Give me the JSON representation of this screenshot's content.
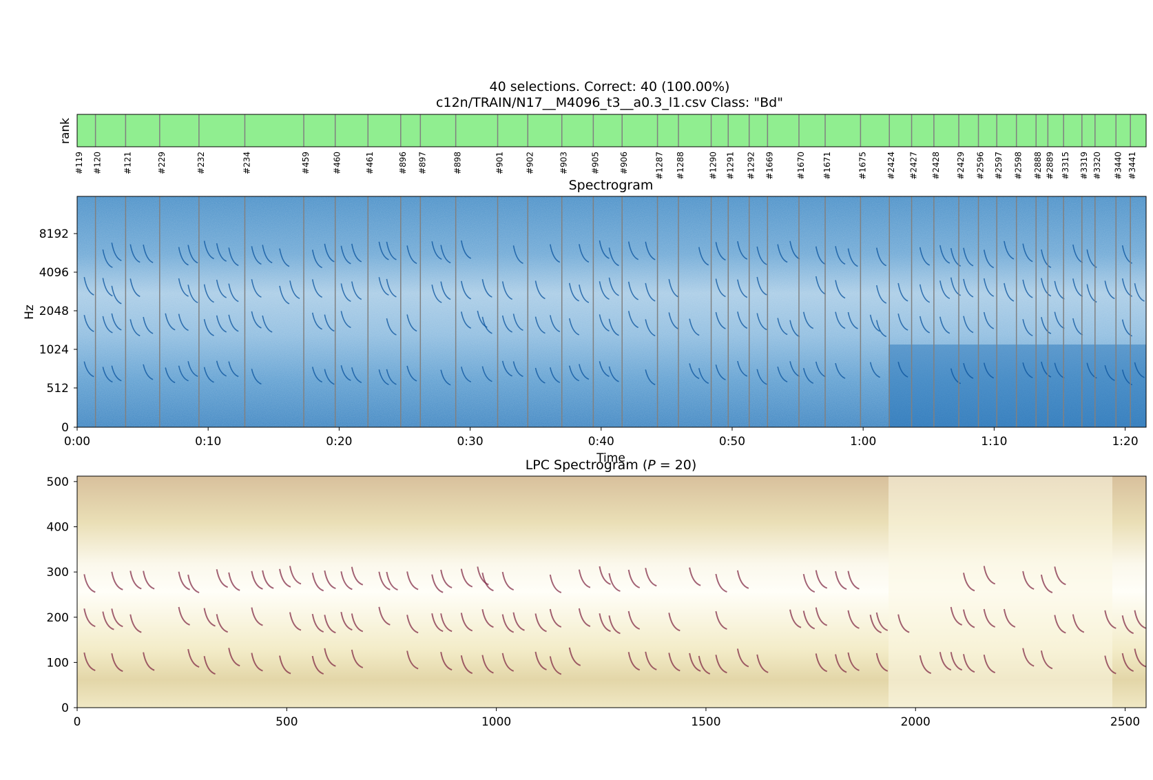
{
  "title_line1": "40 selections.  Correct: 40 (100.00%)",
  "title_line2": "c12n/TRAIN/N17__M4096_t3__a0.3_l1.csv  Class: \"Bd\"",
  "rank_label": "rank",
  "spectrogram_title": "Spectrogram",
  "lpc_title_prefix": "LPC Spectrogram (",
  "lpc_title_var": "P",
  "lpc_title_suffix": " = 20)",
  "colors": {
    "correct_fill": "#90ee90",
    "boundary_line": "#808080",
    "spec_base": "#6baed6",
    "spec_dark": "#08519c",
    "spec_light": "#deebf7",
    "lpc_base": "#f7f3d6",
    "lpc_dark": "#7a1f3d",
    "lpc_tan": "#d8c59a"
  },
  "chart_data": [
    {
      "type": "heatmap",
      "name": "rank-strip",
      "ylabel": "rank",
      "selections": [
        {
          "label": "#119",
          "start": 0.0
        },
        {
          "label": "#120",
          "start": 1.4
        },
        {
          "label": "#121",
          "start": 3.7
        },
        {
          "label": "#229",
          "start": 6.3
        },
        {
          "label": "#232",
          "start": 9.3
        },
        {
          "label": "#234",
          "start": 12.8
        },
        {
          "label": "#459",
          "start": 17.3
        },
        {
          "label": "#460",
          "start": 19.7
        },
        {
          "label": "#461",
          "start": 22.2
        },
        {
          "label": "#896",
          "start": 24.7
        },
        {
          "label": "#897",
          "start": 26.2
        },
        {
          "label": "#898",
          "start": 28.9
        },
        {
          "label": "#901",
          "start": 32.1
        },
        {
          "label": "#902",
          "start": 34.4
        },
        {
          "label": "#903",
          "start": 37.0
        },
        {
          "label": "#905",
          "start": 39.4
        },
        {
          "label": "#906",
          "start": 41.6
        },
        {
          "label": "#1287",
          "start": 44.3
        },
        {
          "label": "#1288",
          "start": 45.9
        },
        {
          "label": "#1290",
          "start": 48.4
        },
        {
          "label": "#1291",
          "start": 49.7
        },
        {
          "label": "#1292",
          "start": 51.3
        },
        {
          "label": "#1669",
          "start": 52.7
        },
        {
          "label": "#1670",
          "start": 55.1
        },
        {
          "label": "#1671",
          "start": 57.1
        },
        {
          "label": "#1675",
          "start": 59.8
        },
        {
          "label": "#2424",
          "start": 62.0
        },
        {
          "label": "#2427",
          "start": 63.7
        },
        {
          "label": "#2428",
          "start": 65.4
        },
        {
          "label": "#2429",
          "start": 67.3
        },
        {
          "label": "#2596",
          "start": 68.8
        },
        {
          "label": "#2597",
          "start": 70.2
        },
        {
          "label": "#2598",
          "start": 71.7
        },
        {
          "label": "#2888",
          "start": 73.2
        },
        {
          "label": "#2889",
          "start": 74.1
        },
        {
          "label": "#3315",
          "start": 75.3
        },
        {
          "label": "#3319",
          "start": 76.7
        },
        {
          "label": "#3320",
          "start": 77.7
        },
        {
          "label": "#3440",
          "start": 79.3
        },
        {
          "label": "#3441",
          "start": 80.4
        }
      ],
      "xlim": [
        0,
        81.6
      ],
      "all_correct": true
    },
    {
      "type": "heatmap",
      "name": "spectrogram",
      "title": "Spectrogram",
      "xlabel": "Time",
      "ylabel": "Hz",
      "x_ticks": [
        "0:00",
        "0:10",
        "0:20",
        "0:30",
        "0:40",
        "0:50",
        "1:00",
        "1:10",
        "1:20"
      ],
      "x_tick_values": [
        0,
        10,
        20,
        30,
        40,
        50,
        60,
        70,
        80
      ],
      "xlim": [
        0,
        81.6
      ],
      "y_ticks": [
        "0",
        "512",
        "1024",
        "2048",
        "4096",
        "8192"
      ],
      "y_scale": "log2-like"
    },
    {
      "type": "heatmap",
      "name": "lpc-spectrogram",
      "title": "LPC Spectrogram (P = 20)",
      "x_ticks": [
        "0",
        "500",
        "1000",
        "1500",
        "2000",
        "2500"
      ],
      "x_tick_values": [
        0,
        500,
        1000,
        1500,
        2000,
        2500
      ],
      "xlim": [
        0,
        2550
      ],
      "y_ticks": [
        "0",
        "100",
        "200",
        "300",
        "400",
        "500"
      ],
      "y_tick_values": [
        0,
        100,
        200,
        300,
        400,
        500
      ],
      "ylim": [
        0,
        512
      ]
    }
  ]
}
